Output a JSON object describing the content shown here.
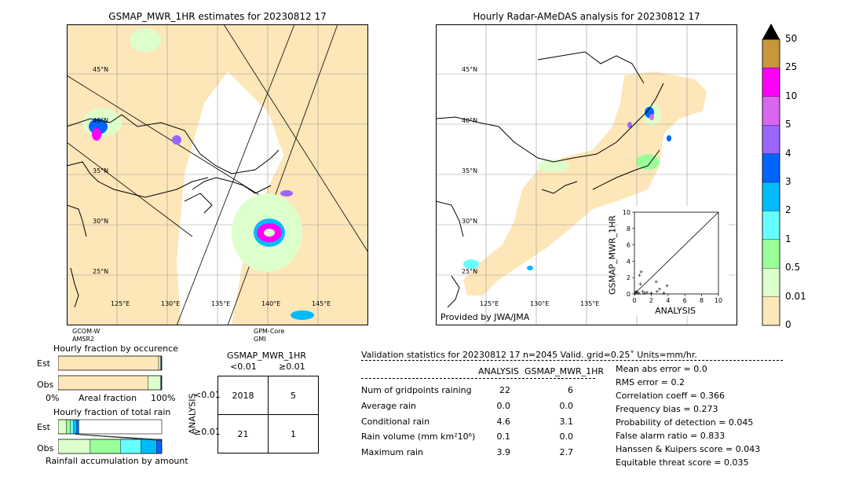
{
  "map1": {
    "title": "GSMAP_MWR_1HR estimates for 20230812 17",
    "lat_labels": [
      "45°N",
      "40°N",
      "35°N",
      "30°N",
      "25°N"
    ],
    "lon_labels": [
      "125°E",
      "130°E",
      "135°E",
      "140°E",
      "145°E"
    ],
    "sat_left": "GCOM-W\nAMSR2",
    "sat_right": "GPM-Core\nGMI"
  },
  "map2": {
    "title": "Hourly Radar-AMeDAS analysis for 20230812 17",
    "lat_labels": [
      "45°N",
      "40°N",
      "35°N",
      "30°N",
      "25°N"
    ],
    "lon_labels": [
      "125°E",
      "130°E",
      "135°E"
    ],
    "credit": "Provided by JWA/JMA"
  },
  "colorbar": {
    "labels": [
      "50",
      "25",
      "10",
      "5",
      "4",
      "3",
      "2",
      "1",
      "0.5",
      "0.01",
      "0"
    ],
    "colors": [
      "#c8963c",
      "#ff00ff",
      "#d966ee",
      "#9966ff",
      "#0066ff",
      "#00bbff",
      "#66ffff",
      "#99ff99",
      "#ddffcc",
      "#fde6b8"
    ]
  },
  "scatter": {
    "ylabel": "GSMAP_MWR_1HR",
    "xlabel": "ANALYSIS",
    "ticks": [
      "0",
      "2",
      "4",
      "6",
      "8",
      "10"
    ]
  },
  "fraction_occ": {
    "title": "Hourly fraction by occurence",
    "rows": [
      "Est",
      "Obs"
    ],
    "xlabel": "Areal fraction",
    "xmin": "0%",
    "xmax": "100%"
  },
  "fraction_total": {
    "title": "Hourly fraction of total rain",
    "rows": [
      "Est",
      "Obs"
    ],
    "xlabel": "Rainfall accumulation by amount"
  },
  "contingency": {
    "title": "GSMAP_MWR_1HR",
    "col_headers": [
      "<0.01",
      "≥0.01"
    ],
    "row_headers": [
      "<0.01",
      "≥0.01"
    ],
    "ylabel": "ANALYSIS",
    "cells": [
      [
        "2018",
        "5"
      ],
      [
        "21",
        "1"
      ]
    ]
  },
  "validation": {
    "header": "Validation statistics for 20230812 17  n=2045 Valid. grid=0.25˚ Units=mm/hr.",
    "col_analysis": "ANALYSIS",
    "col_gsmap": "GSMAP_MWR_1HR",
    "rows": [
      {
        "label": "Num of gridpoints raining",
        "a": "22",
        "g": "6"
      },
      {
        "label": "Average rain",
        "a": "0.0",
        "g": "0.0"
      },
      {
        "label": "Conditional rain",
        "a": "4.6",
        "g": "3.1"
      },
      {
        "label": "Rain volume (mm km²10⁶)",
        "a": "0.1",
        "g": "0.0"
      },
      {
        "label": "Maximum rain",
        "a": "3.9",
        "g": "2.7"
      }
    ],
    "scores": [
      "Mean abs error =    0.0",
      "RMS error =    0.2",
      "Correlation coeff =  0.366",
      "Frequency bias =  0.273",
      "Probability of detection =  0.045",
      "False alarm ratio =  0.833",
      "Hanssen & Kuipers score =  0.043",
      "Equitable threat score =  0.035"
    ]
  },
  "chart_data": [
    {
      "type": "scatter",
      "xlabel": "ANALYSIS",
      "ylabel": "GSMAP_MWR_1HR",
      "xlim": [
        0,
        10
      ],
      "ylim": [
        0,
        10
      ],
      "points": [
        [
          0.1,
          0.1
        ],
        [
          0.2,
          0.3
        ],
        [
          0.3,
          0.2
        ],
        [
          0.5,
          0.1
        ],
        [
          0.6,
          2.3
        ],
        [
          0.7,
          1.2
        ],
        [
          0.8,
          2.7
        ],
        [
          1.0,
          0.3
        ],
        [
          1.2,
          0.1
        ],
        [
          1.5,
          0.2
        ],
        [
          2.0,
          0.1
        ],
        [
          2.6,
          1.5
        ],
        [
          2.7,
          0.3
        ],
        [
          3.0,
          0.6
        ],
        [
          3.5,
          0.1
        ],
        [
          3.9,
          1.0
        ]
      ]
    },
    {
      "type": "bar",
      "title": "Hourly fraction by occurence",
      "categories": [
        "Est",
        "Obs"
      ],
      "series": [
        {
          "values": [
            0.97,
            0.87
          ]
        },
        {
          "values": [
            0.02,
            0.12
          ]
        },
        {
          "values": [
            0.01,
            0.01
          ]
        }
      ]
    },
    {
      "type": "bar",
      "title": "Hourly fraction of total rain",
      "categories": [
        "Est",
        "Obs"
      ],
      "series": [
        {
          "values": [
            0.08,
            0.31
          ]
        },
        {
          "values": [
            0.04,
            0.29
          ]
        },
        {
          "values": [
            0.03,
            0.2
          ]
        },
        {
          "values": [
            0.03,
            0.15
          ]
        },
        {
          "values": [
            0.02,
            0.05
          ]
        }
      ]
    }
  ]
}
